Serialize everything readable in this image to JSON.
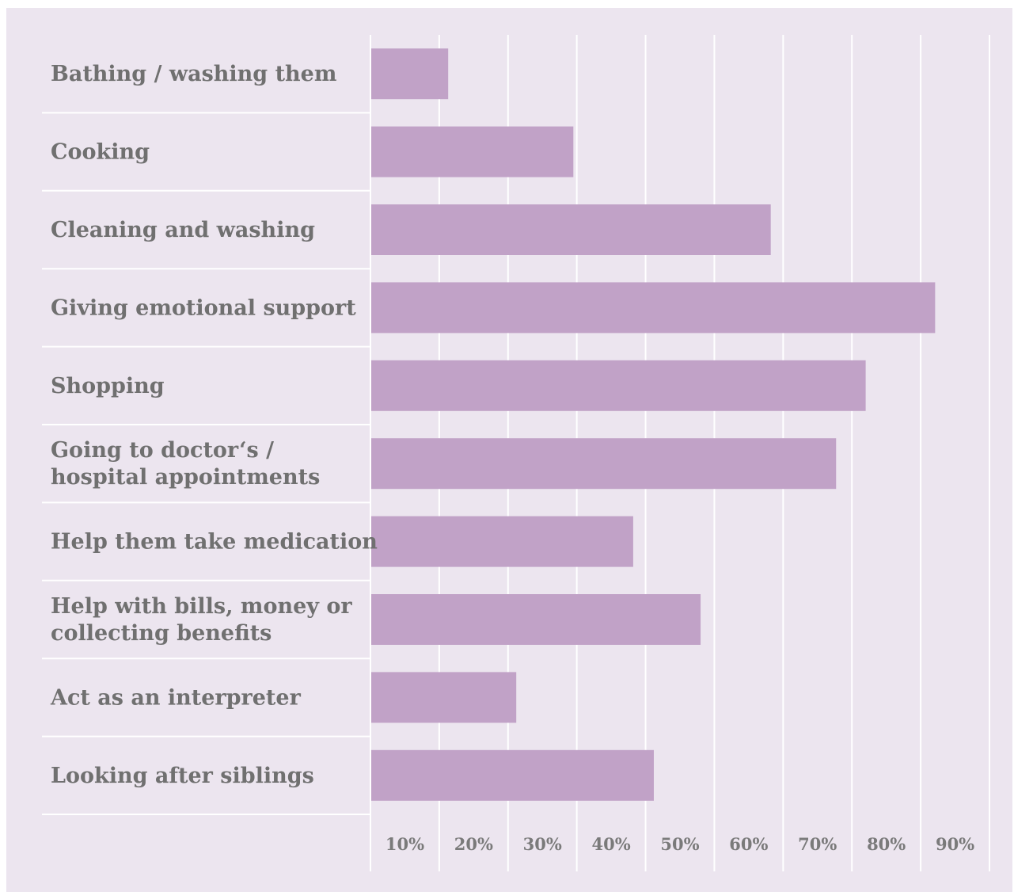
{
  "chart_data": {
    "type": "bar",
    "orientation": "horizontal",
    "categories": [
      "Bathing / washing them",
      "Cooking",
      "Cleaning and washing",
      "Giving emotional support",
      "Shopping",
      "Going to doctor‘s / hospital appointments",
      "Help them take medication",
      "Help with bills, money or collecting benefits",
      "Act as an interpreter",
      "Looking after siblings"
    ],
    "category_lines": [
      [
        "Bathing / washing them"
      ],
      [
        "Cooking"
      ],
      [
        "Cleaning and washing"
      ],
      [
        "Giving emotional support"
      ],
      [
        "Shopping"
      ],
      [
        "Going to doctor‘s /",
        "hospital appointments"
      ],
      [
        "Help them take medication"
      ],
      [
        "Help with bills, money or",
        "collecting benefits"
      ],
      [
        "Act as an interpreter"
      ],
      [
        "Looking after siblings"
      ]
    ],
    "values": [
      11.3,
      29.5,
      58.2,
      82.1,
      72.0,
      67.7,
      38.2,
      48.0,
      21.2,
      41.2
    ],
    "x_ticks": [
      "10%",
      "20%",
      "30%",
      "40%",
      "50%",
      "60%",
      "70%",
      "80%",
      "90%"
    ],
    "xlim": [
      0,
      90
    ],
    "title": "",
    "xlabel": "",
    "ylabel": "",
    "grid": true,
    "legend": "none",
    "colors": {
      "bar": "#c1a2c7",
      "background": "#ece5ef",
      "gridline": "#ffffff",
      "label_text": "#707070",
      "tick_text": "#7a7a7a"
    }
  }
}
